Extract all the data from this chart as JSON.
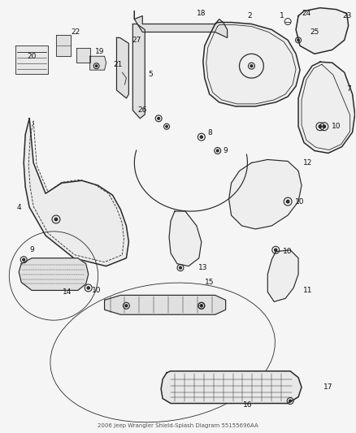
{
  "bg_color": "#f5f5f5",
  "line_color": "#2a2a2a",
  "fill_color": "#f0f0f0",
  "label_color": "#111111",
  "label_fontsize": 6.5,
  "fig_width": 4.38,
  "fig_height": 5.33,
  "dpi": 100,
  "title_text": "2006 Jeep Wrangler Shield-Splash Diagram 55155696AA"
}
